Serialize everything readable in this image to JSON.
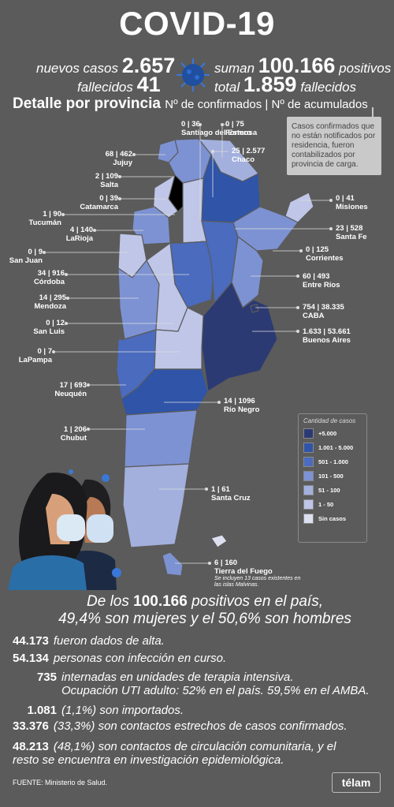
{
  "title": "COVID-19",
  "headline": {
    "nuevos_label": "nuevos casos",
    "nuevos_value": "2.657",
    "suman_label": "suman",
    "suman_value": "100.166",
    "positivos_label": "positivos",
    "fallecidos_label": "fallecidos",
    "fallecidos_value": "41",
    "total_label": "total",
    "total_value": "1.859",
    "total_fallecidos_label": "fallecidos"
  },
  "section": {
    "title": "Detalle por provincia",
    "subtitle": "Nº de confirmados | Nº de acumulados"
  },
  "note": "Casos confirmados que no están notificados por residencia, fueron contabilizados por provincia de carga.",
  "chart_data": {
    "type": "choropleth map",
    "title": "Detalle por provincia",
    "legend_title": "Cantidad de casos",
    "legend": [
      {
        "label": "+5.000",
        "color": "#2c3a73"
      },
      {
        "label": "1.001 - 5.000",
        "color": "#2f54a8"
      },
      {
        "label": "501 - 1.000",
        "color": "#4a6bbe"
      },
      {
        "label": "101 - 500",
        "color": "#7d92d3"
      },
      {
        "label": "51 - 100",
        "color": "#a3b0dd"
      },
      {
        "label": "1 - 50",
        "color": "#bfc6e8"
      },
      {
        "label": "Sin casos",
        "color": "#dde0f0"
      }
    ],
    "provinces": [
      {
        "name": "Santiago del Estero",
        "confirmados": 0,
        "acumulados": 36,
        "value_text": "0 | 36"
      },
      {
        "name": "Formosa",
        "confirmados": 0,
        "acumulados": 75,
        "value_text": "0 | 75"
      },
      {
        "name": "Chaco",
        "confirmados": 25,
        "acumulados": 2577,
        "value_text": "25 | 2.577"
      },
      {
        "name": "Jujuy",
        "confirmados": 68,
        "acumulados": 462,
        "value_text": "68 | 462"
      },
      {
        "name": "Salta",
        "confirmados": 2,
        "acumulados": 109,
        "value_text": "2 | 109"
      },
      {
        "name": "Catamarca",
        "confirmados": 0,
        "acumulados": 39,
        "value_text": "0 | 39"
      },
      {
        "name": "Misiones",
        "confirmados": 0,
        "acumulados": 41,
        "value_text": "0 | 41"
      },
      {
        "name": "Tucumán",
        "confirmados": 1,
        "acumulados": 90,
        "value_text": "1 | 90"
      },
      {
        "name": "LaRioja",
        "confirmados": 4,
        "acumulados": 140,
        "value_text": "4 | 140"
      },
      {
        "name": "Santa Fe",
        "confirmados": 23,
        "acumulados": 528,
        "value_text": "23 | 528"
      },
      {
        "name": "San Juan",
        "confirmados": 0,
        "acumulados": 9,
        "value_text": "0 | 9"
      },
      {
        "name": "Corrientes",
        "confirmados": 0,
        "acumulados": 125,
        "value_text": "0 | 125"
      },
      {
        "name": "Córdoba",
        "confirmados": 34,
        "acumulados": 916,
        "value_text": "34 | 916"
      },
      {
        "name": "Entre Ríos",
        "confirmados": 60,
        "acumulados": 493,
        "value_text": "60 | 493"
      },
      {
        "name": "Mendoza",
        "confirmados": 14,
        "acumulados": 295,
        "value_text": "14 | 295"
      },
      {
        "name": "CABA",
        "confirmados": 754,
        "acumulados": 38335,
        "value_text": "754 | 38.335"
      },
      {
        "name": "San Luis",
        "confirmados": 0,
        "acumulados": 12,
        "value_text": "0 | 12"
      },
      {
        "name": "Buenos Aires",
        "confirmados": 1633,
        "acumulados": 53661,
        "value_text": "1.633 | 53.661"
      },
      {
        "name": "LaPampa",
        "confirmados": 0,
        "acumulados": 7,
        "value_text": "0 | 7"
      },
      {
        "name": "Neuquén",
        "confirmados": 17,
        "acumulados": 693,
        "value_text": "17 | 693"
      },
      {
        "name": "Río Negro",
        "confirmados": 14,
        "acumulados": 1096,
        "value_text": "14 | 1096"
      },
      {
        "name": "Chubut",
        "confirmados": 1,
        "acumulados": 206,
        "value_text": "1 | 206"
      },
      {
        "name": "Santa Cruz",
        "confirmados": 1,
        "acumulados": 61,
        "value_text": "1 | 61"
      },
      {
        "name": "Tierra del Fuego",
        "confirmados": 6,
        "acumulados": 160,
        "value_text": "6 | 160",
        "note": "Se incluyen 13 casos existentes en las islas Malvinas."
      }
    ]
  },
  "summary": {
    "line1_pre": "De los",
    "line1_value": "100.166",
    "line1_post": "positivos en el país,",
    "mujeres_pct": "49,4%",
    "mujeres_text": "son mujeres y el",
    "hombres_pct": "50,6%",
    "hombres_text": "son hombres"
  },
  "stats": [
    {
      "k": "44.173",
      "t": "fueron dados de alta."
    },
    {
      "k": "54.134",
      "t": "personas con infección en curso."
    },
    {
      "k": "735",
      "t": "internadas en unidades de terapia intensiva.",
      "t2": "Ocupación UTI adulto: 52% en el país. 59,5% en el AMBA."
    },
    {
      "k": "1.081",
      "t": "(1,1%) son importados."
    },
    {
      "k": "33.376",
      "t": "(33,3%) son contactos estrechos de casos confirmados."
    },
    {
      "k": "48.213",
      "t": "(48,1%) son contactos de circulación comunitaria, y el",
      "t2": "resto se encuentra en investigación epidemiológica."
    }
  ],
  "source": "FUENTE: Ministerio de Salud.",
  "brand": "télam"
}
